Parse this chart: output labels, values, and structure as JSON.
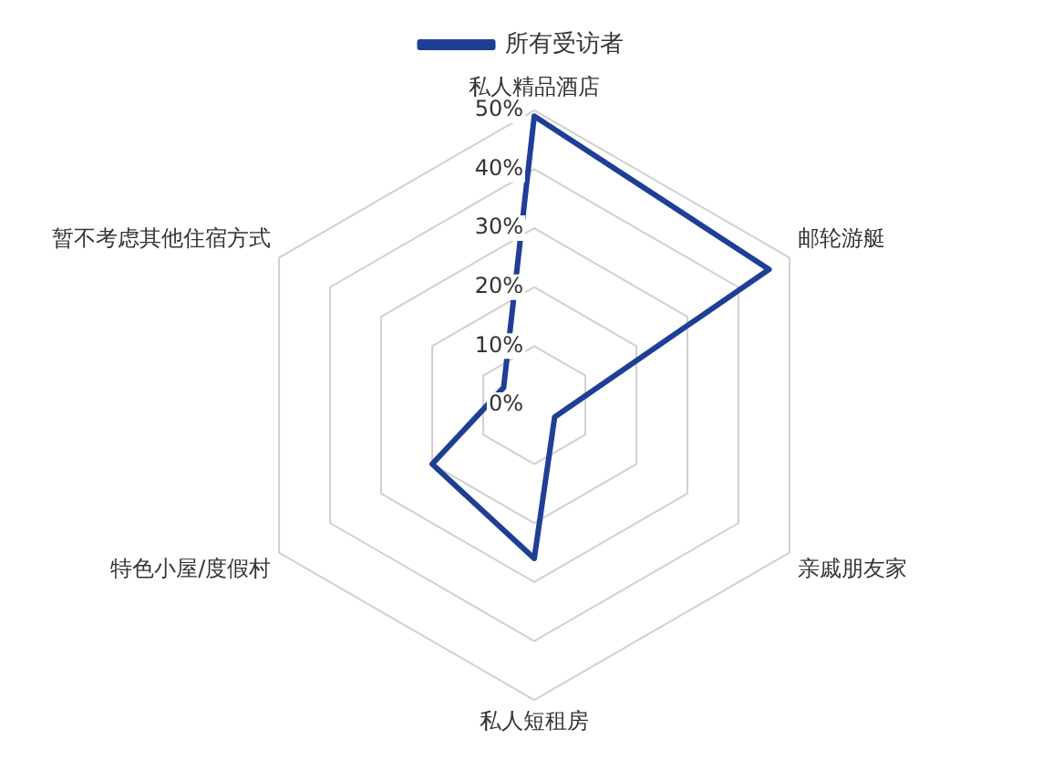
{
  "chart_data": {
    "type": "radar",
    "categories": [
      "私人精品酒店",
      "邮轮游艇",
      "亲戚朋友家",
      "私人短租房",
      "特色小屋/度假村",
      "暂不考虑其他住宿方式"
    ],
    "series": [
      {
        "name": "所有受访者",
        "color": "#1f3f96",
        "values": [
          49,
          46,
          4,
          26,
          20,
          6
        ]
      }
    ],
    "ylim": [
      0,
      50
    ],
    "yticks": [
      {
        "value": 0,
        "label": "0%"
      },
      {
        "value": 10,
        "label": "10%"
      },
      {
        "value": 20,
        "label": "20%"
      },
      {
        "value": 30,
        "label": "30%"
      },
      {
        "value": 40,
        "label": "40%"
      },
      {
        "value": 50,
        "label": "50%"
      }
    ],
    "grid": true,
    "legend": "top",
    "marker": "none",
    "line_style": "solid"
  }
}
